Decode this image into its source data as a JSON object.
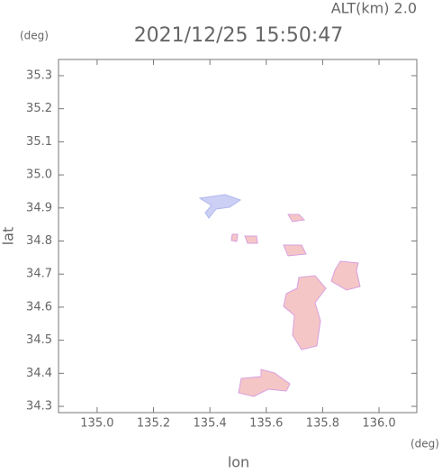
{
  "chart_data": {
    "type": "map",
    "title": "2021/12/25 15:50:47",
    "subtitle": "ALT(km) 2.0",
    "x_label": "lon",
    "y_label": "lat",
    "x_unit": "(deg)",
    "y_unit": "(deg)",
    "xlim": [
      134.863,
      136.134
    ],
    "ylim": [
      34.281,
      35.349
    ],
    "xticks": [
      {
        "value": 135.0,
        "label": "135.0"
      },
      {
        "value": 135.2,
        "label": "135.2"
      },
      {
        "value": 135.4,
        "label": "135.4"
      },
      {
        "value": 135.6,
        "label": "135.6"
      },
      {
        "value": 135.8,
        "label": "135.8"
      },
      {
        "value": 136.0,
        "label": "136.0"
      }
    ],
    "yticks": [
      {
        "value": 34.3,
        "label": "34.3"
      },
      {
        "value": 34.4,
        "label": "34.4"
      },
      {
        "value": 34.5,
        "label": "34.5"
      },
      {
        "value": 34.6,
        "label": "34.6"
      },
      {
        "value": 34.7,
        "label": "34.7"
      },
      {
        "value": 34.8,
        "label": "34.8"
      },
      {
        "value": 34.9,
        "label": "34.9"
      },
      {
        "value": 35.0,
        "label": "35.0"
      },
      {
        "value": 35.1,
        "label": "35.1"
      },
      {
        "value": 35.2,
        "label": "35.2"
      },
      {
        "value": 35.3,
        "label": "35.3"
      }
    ]
  }
}
